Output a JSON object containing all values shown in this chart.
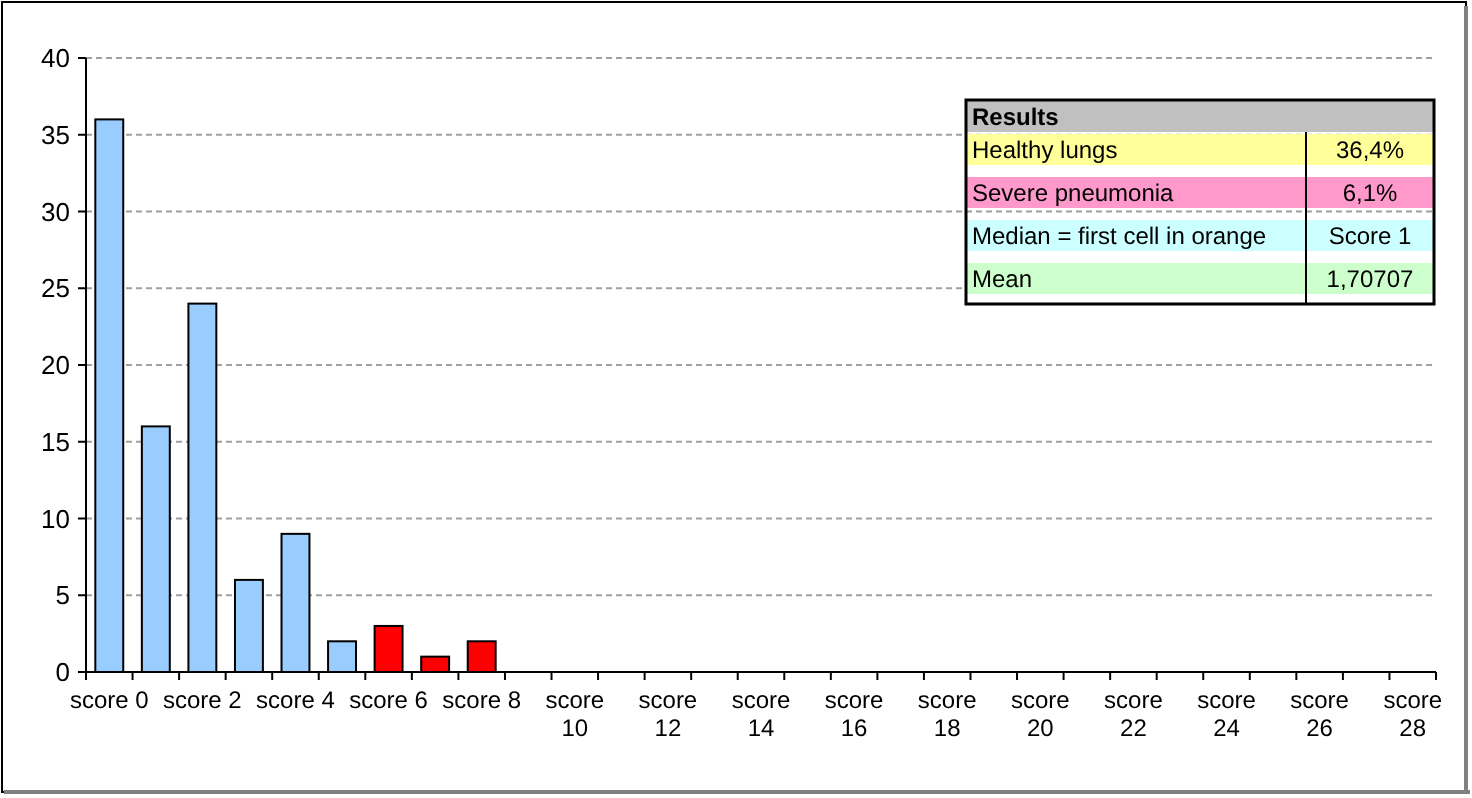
{
  "chart_data": {
    "type": "bar",
    "categories": [
      "score 0",
      null,
      "score 2",
      null,
      "score 4",
      null,
      "score 6",
      null,
      "score 8",
      null,
      "score 10",
      null,
      "score 12",
      null,
      "score 14",
      null,
      "score 16",
      null,
      "score 18",
      null,
      "score 20",
      null,
      "score 22",
      null,
      "score 24",
      null,
      "score 26",
      null,
      "score 28"
    ],
    "values": [
      36,
      16,
      24,
      6,
      9,
      2,
      3,
      1,
      2,
      0,
      0,
      0,
      0,
      0,
      0,
      0,
      0,
      0,
      0,
      0,
      0,
      0,
      0,
      0,
      0,
      0,
      0,
      0,
      0
    ],
    "colors": [
      "#99ccff",
      "#99ccff",
      "#99ccff",
      "#99ccff",
      "#99ccff",
      "#99ccff",
      "#ff0000",
      "#ff0000",
      "#ff0000",
      "#99ccff",
      "#99ccff",
      "#99ccff",
      "#99ccff",
      "#99ccff",
      "#99ccff",
      "#99ccff",
      "#99ccff",
      "#99ccff",
      "#99ccff",
      "#99ccff",
      "#99ccff",
      "#99ccff",
      "#99ccff",
      "#99ccff",
      "#99ccff",
      "#99ccff",
      "#99ccff",
      "#99ccff",
      "#99ccff"
    ],
    "ylim": [
      0,
      40
    ],
    "yticks": [
      0,
      5,
      10,
      15,
      20,
      25,
      30,
      35,
      40
    ],
    "grid": "y",
    "annotations": [
      "Results",
      "Healthy lungs",
      "36,4%",
      "Severe pneumonia",
      "6,1%",
      "Median = first cell in orange",
      "Score 1",
      "Mean",
      "1,70707"
    ]
  }
}
